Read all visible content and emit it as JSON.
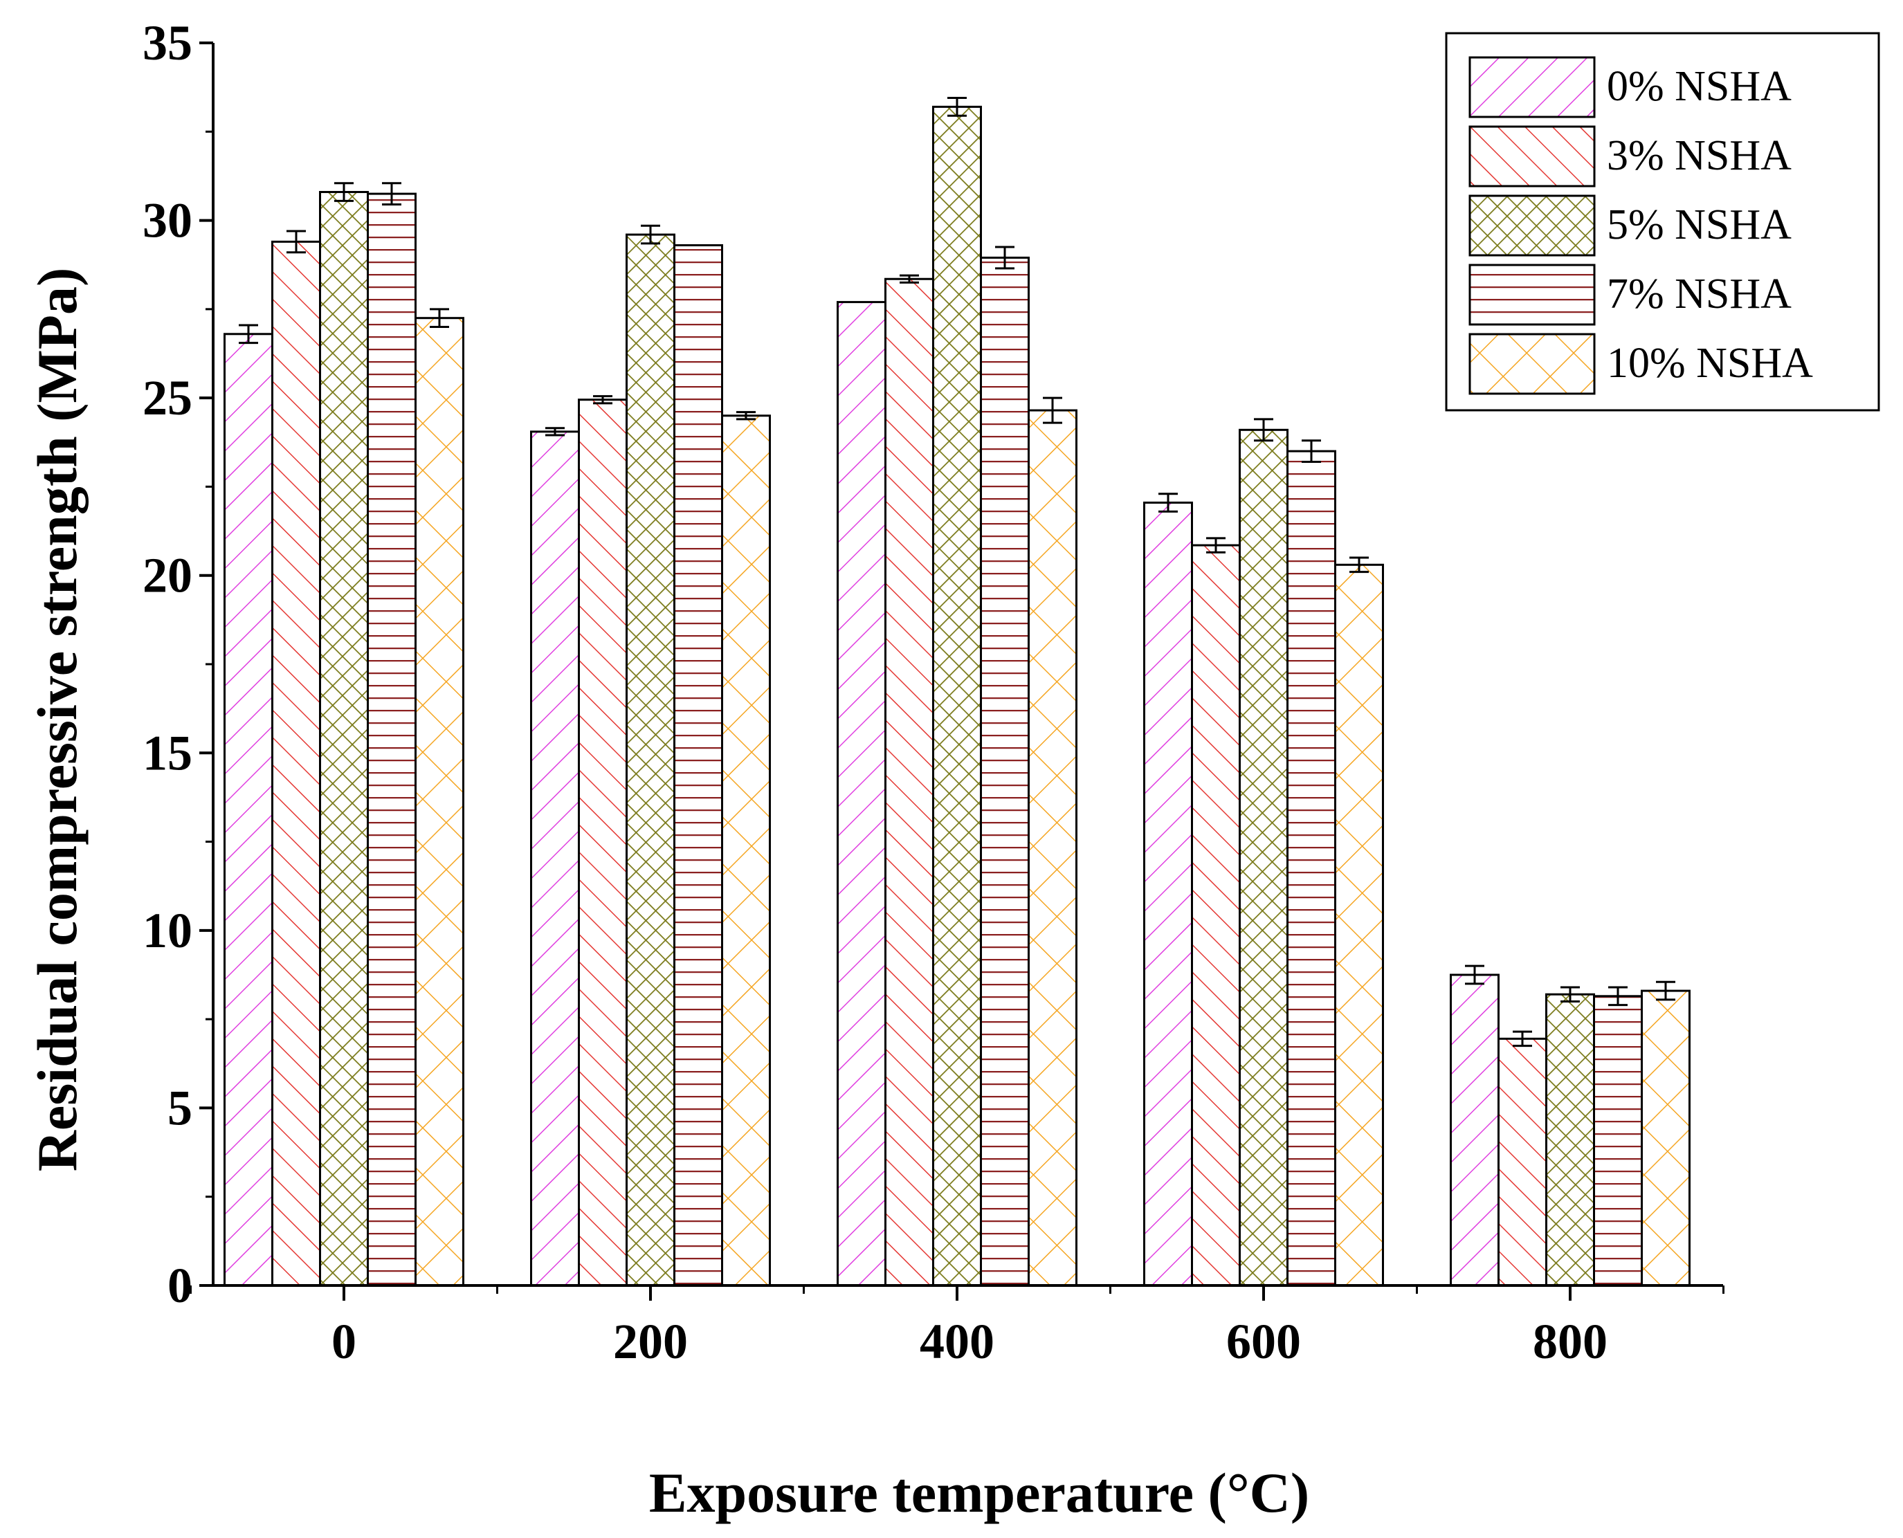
{
  "chart_data": {
    "type": "bar",
    "title": "",
    "xlabel": "Exposure temperature (°C)",
    "ylabel": "Residual compressive strength (MPa)",
    "categories": [
      "0",
      "200",
      "400",
      "600",
      "800"
    ],
    "ylim": [
      0,
      35
    ],
    "yticks": [
      "0",
      "5",
      "10",
      "15",
      "20",
      "25",
      "30",
      "35"
    ],
    "grid": false,
    "legend_position": "top-right",
    "series": [
      {
        "name": "0% NSHA",
        "color": "#e040e0",
        "pattern": "diag-right",
        "values": [
          26.8,
          24.05,
          27.7,
          22.05,
          8.75
        ],
        "errors": [
          0.25,
          0.1,
          0.0,
          0.25,
          0.25
        ]
      },
      {
        "name": "3% NSHA",
        "color": "#e53935",
        "pattern": "diag-left",
        "values": [
          29.4,
          24.95,
          28.35,
          20.85,
          6.95
        ],
        "errors": [
          0.3,
          0.1,
          0.1,
          0.2,
          0.2
        ]
      },
      {
        "name": "5% NSHA",
        "color": "#7a7a1a",
        "pattern": "crosshatch",
        "values": [
          30.8,
          29.6,
          33.2,
          24.1,
          8.2
        ],
        "errors": [
          0.25,
          0.25,
          0.25,
          0.3,
          0.2
        ]
      },
      {
        "name": "7% NSHA",
        "color": "#8b2020",
        "pattern": "horizontal",
        "values": [
          30.75,
          29.3,
          28.95,
          23.5,
          8.15
        ],
        "errors": [
          0.3,
          0.0,
          0.3,
          0.3,
          0.25
        ]
      },
      {
        "name": "10% NSHA",
        "color": "#f5a623",
        "pattern": "crosshatch-wide",
        "values": [
          27.25,
          24.5,
          24.65,
          20.3,
          8.3
        ],
        "errors": [
          0.25,
          0.1,
          0.35,
          0.2,
          0.25
        ]
      }
    ]
  }
}
